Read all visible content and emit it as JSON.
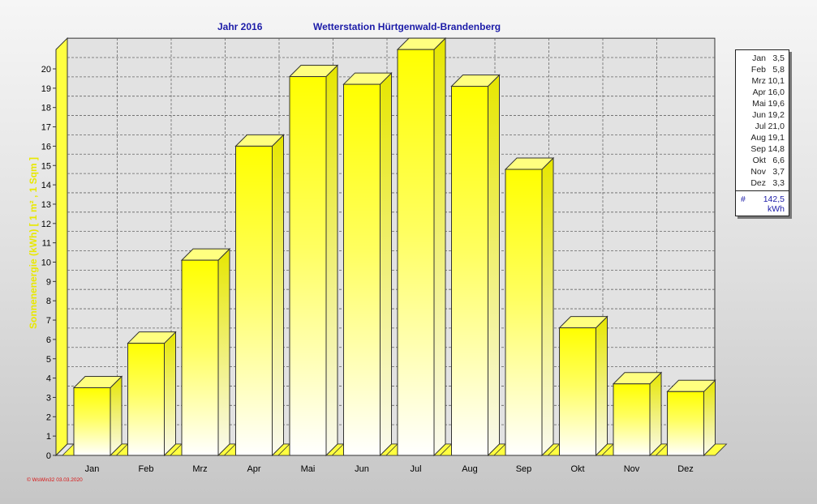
{
  "title": {
    "year": "Jahr  2016",
    "station": "Wetterstation Hürtgenwald-Brandenberg"
  },
  "chart_data": {
    "type": "bar",
    "categories": [
      "Jan",
      "Feb",
      "Mrz",
      "Apr",
      "Mai",
      "Jun",
      "Jul",
      "Aug",
      "Sep",
      "Okt",
      "Nov",
      "Dez"
    ],
    "values": [
      3.5,
      5.8,
      10.1,
      16.0,
      19.6,
      19.2,
      21.0,
      19.1,
      14.8,
      6.6,
      3.7,
      3.3
    ],
    "ylabel": "Sonnenenergie  (kWh)  [ 1 m² , 1 Sqm ]",
    "ylim": [
      0,
      21
    ],
    "yticks": [
      0,
      1,
      2,
      3,
      4,
      5,
      6,
      7,
      8,
      9,
      10,
      11,
      12,
      13,
      14,
      15,
      16,
      17,
      18,
      19,
      20
    ],
    "grid": true,
    "bar_color": "#ffff00",
    "legend": {
      "position": "right",
      "entries": [
        {
          "month": "Jan",
          "value": "3,5"
        },
        {
          "month": "Feb",
          "value": "5,8"
        },
        {
          "month": "Mrz",
          "value": "10,1"
        },
        {
          "month": "Apr",
          "value": "16,0"
        },
        {
          "month": "Mai",
          "value": "19,6"
        },
        {
          "month": "Jun",
          "value": "19,2"
        },
        {
          "month": "Jul",
          "value": "21,0"
        },
        {
          "month": "Aug",
          "value": "19,1"
        },
        {
          "month": "Sep",
          "value": "14,8"
        },
        {
          "month": "Okt",
          "value": "6,6"
        },
        {
          "month": "Nov",
          "value": "3,7"
        },
        {
          "month": "Dez",
          "value": "3,3"
        }
      ],
      "total_symbol": "#",
      "total": "142,5",
      "unit": "kWh"
    }
  },
  "footer": "© WsWin32  03.03.2020",
  "colors": {
    "title": "#1c1ca8",
    "ylabel": "#e8e800",
    "footer": "#d81010",
    "bar": "#ffff00"
  }
}
